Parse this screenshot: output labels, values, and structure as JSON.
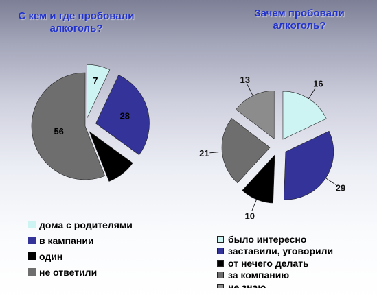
{
  "colors": {
    "light_cyan": "#cdf3f3",
    "navy": "#333399",
    "black": "#000000",
    "dark_gray": "#6e6e6e",
    "mid_gray": "#8c8c8c",
    "title_blue": "#2233cc"
  },
  "chart_data": [
    {
      "type": "pie",
      "title": "С кем и где пробовали алкоголь?",
      "categories": [
        "дома с родителями",
        "в кампании",
        "один",
        "не ответили"
      ],
      "values": [
        7,
        28,
        9,
        56
      ],
      "data_labels": [
        "7",
        "28",
        "",
        "56"
      ],
      "colors": [
        "#cdf3f3",
        "#333399",
        "#000000",
        "#6e6e6e"
      ],
      "exploded": true,
      "legend_position": "bottom"
    },
    {
      "type": "pie",
      "title": "Зачем пробовали алкоголь?",
      "categories": [
        "было интересно",
        "заставили, уговорили",
        "от нечего делать",
        "за компанию",
        "не знаю"
      ],
      "values": [
        16,
        29,
        10,
        21,
        13
      ],
      "data_labels": [
        "16",
        "29",
        "10",
        "21",
        "13"
      ],
      "colors": [
        "#cdf3f3",
        "#333399",
        "#000000",
        "#6e6e6e",
        "#8c8c8c"
      ],
      "exploded": true,
      "legend_position": "bottom"
    }
  ]
}
